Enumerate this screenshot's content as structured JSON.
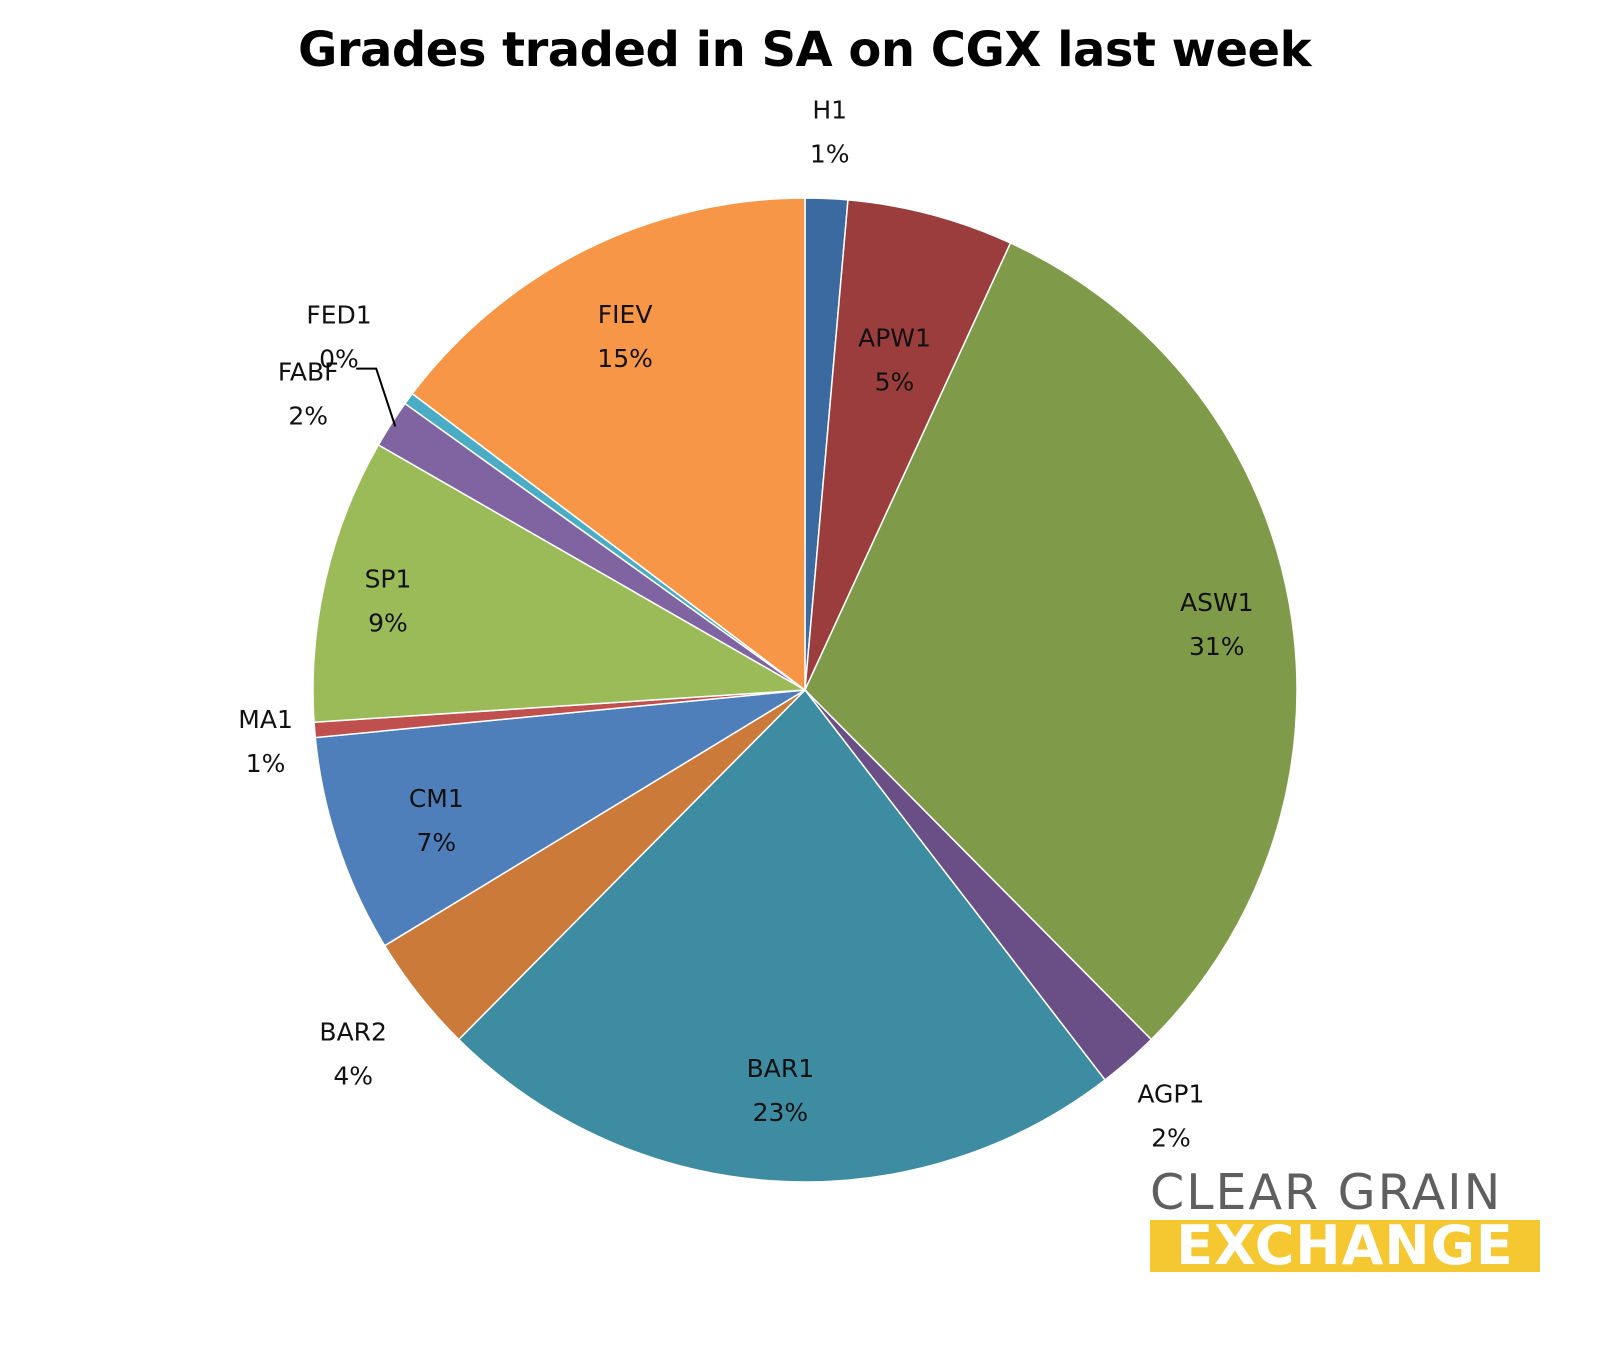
{
  "chart_data": {
    "type": "pie",
    "title": "Grades traded in SA on CGX last week",
    "slices": [
      {
        "name": "H1",
        "label": "1%",
        "value": 1.4,
        "color": "#3a6aa0"
      },
      {
        "name": "APW1",
        "label": "5%",
        "value": 5.5,
        "color": "#9b3d3d"
      },
      {
        "name": "ASW1",
        "label": "31%",
        "value": 30.9,
        "color": "#7f9a48"
      },
      {
        "name": "AGP1",
        "label": "2%",
        "value": 2.0,
        "color": "#6a4e86"
      },
      {
        "name": "BAR1",
        "label": "23%",
        "value": 23.0,
        "color": "#3d8ca2"
      },
      {
        "name": "BAR2",
        "label": "4%",
        "value": 3.9,
        "color": "#cc7a39"
      },
      {
        "name": "CM1",
        "label": "7%",
        "value": 7.2,
        "color": "#4f7fbb"
      },
      {
        "name": "MA1",
        "label": "1%",
        "value": 0.5,
        "color": "#c0504d"
      },
      {
        "name": "SP1",
        "label": "9%",
        "value": 9.4,
        "color": "#9bbb59"
      },
      {
        "name": "FABF",
        "label": "2%",
        "value": 1.6,
        "color": "#8064a2"
      },
      {
        "name": "FED1",
        "label": "0%",
        "value": 0.4,
        "color": "#4bacc6"
      },
      {
        "name": "FIEV",
        "label": "15%",
        "value": 14.8,
        "color": "#f79646"
      }
    ],
    "legend": "none",
    "start_angle_deg": 0,
    "direction": "clockwise"
  },
  "logo": {
    "line1": "CLEAR GRAIN",
    "line2": "EXCHANGE",
    "text_color": "#5f5f5f",
    "band_color": "#f5c832"
  }
}
